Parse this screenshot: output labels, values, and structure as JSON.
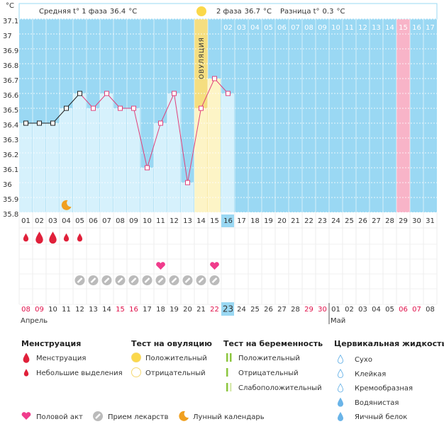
{
  "chart_data": {
    "type": "line",
    "unit": "°C",
    "header": {
      "phase1": {
        "label": "Средняя t° 1 фаза",
        "value": 36.4,
        "unit": "°C"
      },
      "phase2": {
        "label": "2 фаза",
        "value": 36.7,
        "unit": "°C"
      },
      "diff": {
        "label": "Разница t°",
        "value": 0.3,
        "unit": "°C"
      }
    },
    "categories": [
      "01",
      "02",
      "03",
      "04",
      "05",
      "06",
      "07",
      "08",
      "09",
      "10",
      "11",
      "12",
      "13",
      "14",
      "15",
      "16",
      "17",
      "18",
      "19",
      "20",
      "21",
      "22",
      "23",
      "24",
      "25",
      "26",
      "27",
      "28",
      "29",
      "30",
      "31"
    ],
    "phase2_labels": [
      null,
      null,
      null,
      null,
      null,
      null,
      null,
      null,
      null,
      null,
      null,
      null,
      null,
      null,
      null,
      "02",
      "03",
      "04",
      "05",
      "06",
      "07",
      "08",
      "09",
      "10",
      "11",
      "12",
      "13",
      "14",
      "15",
      "16",
      "17"
    ],
    "dates": [
      "08",
      "09",
      "10",
      "11",
      "12",
      "13",
      "14",
      "15",
      "16",
      "17",
      "18",
      "19",
      "20",
      "21",
      "22",
      "23",
      "24",
      "25",
      "26",
      "27",
      "28",
      "29",
      "30",
      "01",
      "02",
      "03",
      "04",
      "05",
      "06",
      "07",
      "08"
    ],
    "weekend": [
      true,
      true,
      false,
      false,
      false,
      false,
      false,
      true,
      true,
      false,
      false,
      false,
      false,
      false,
      true,
      false,
      false,
      false,
      false,
      false,
      false,
      true,
      true,
      false,
      false,
      false,
      false,
      false,
      true,
      true,
      false
    ],
    "months": [
      {
        "label": "Апрель",
        "day": "01"
      },
      {
        "label": "Май",
        "day": "24"
      }
    ],
    "today_day": "16",
    "pink_day": "29",
    "ovulation": {
      "text": "ОВУЛЯЦИЯ",
      "day": "14"
    },
    "series": [
      {
        "name": "Температура",
        "color": "#e0407a",
        "first_phase_color": "#222",
        "first_phase_days": 5,
        "values": [
          36.4,
          36.4,
          36.4,
          36.5,
          36.6,
          36.5,
          36.6,
          36.5,
          36.5,
          36.1,
          36.4,
          36.6,
          36.0,
          36.5,
          36.7,
          36.6,
          null,
          null,
          null,
          null,
          null,
          null,
          null,
          null,
          null,
          null,
          null,
          null,
          null,
          null,
          null
        ]
      }
    ],
    "ylim": [
      35.8,
      37.1
    ],
    "yticks": [
      37.1,
      37,
      36.9,
      36.8,
      36.7,
      36.6,
      36.5,
      36.4,
      36.3,
      36.2,
      36.1,
      36,
      35.9,
      35.8
    ],
    "grid": true,
    "events": {
      "menstruation": [
        "01",
        "02",
        "03",
        "04",
        "05"
      ],
      "heavy": [
        "02",
        "03"
      ],
      "intercourse": [
        "11",
        "15"
      ],
      "medication": [
        "05",
        "06",
        "07",
        "08",
        "09",
        "10",
        "11",
        "12",
        "13",
        "14",
        "15"
      ],
      "moon": "04"
    },
    "legend": {
      "menstruation": {
        "title": "Менструация",
        "items": [
          "Менструация",
          "Небольшие выделения"
        ]
      },
      "ovulation_test": {
        "title": "Тест на овуляцию",
        "items": [
          "Положительный",
          "Отрицательный"
        ]
      },
      "pregnancy_test": {
        "title": "Тест на беременность",
        "items": [
          "Положительный",
          "Отрицательный",
          "Слабоположительный"
        ]
      },
      "cervical": {
        "title": "Цервикальная жидкость",
        "items": [
          "Сухо",
          "Клейкая",
          "Кремообразная",
          "Водянистая",
          "Яичный белок"
        ]
      },
      "other": [
        "Половой акт",
        "Прием лекарств",
        "Лунный календарь"
      ]
    }
  }
}
